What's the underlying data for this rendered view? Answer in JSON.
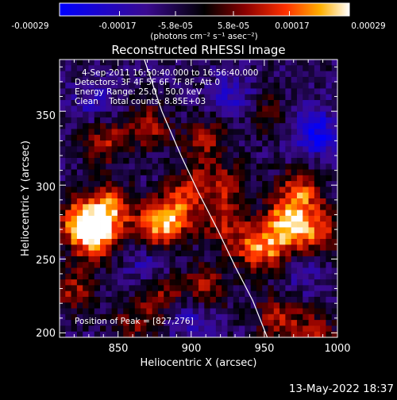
{
  "colorbar": {
    "tick_labels": [
      "-0.00029",
      "-0.00017",
      "-5.8e-05",
      "5.8e-05",
      "0.00017",
      "0.00029"
    ],
    "unit_label": "(photons cm⁻² s⁻¹ asec⁻²)",
    "range": [
      -0.00029,
      0.00029
    ]
  },
  "chart_data": {
    "type": "heatmap",
    "title": "Reconstructed RHESSI Image",
    "xlabel": "Heliocentric X (arcsec)",
    "ylabel": "Heliocentric Y (arcsec)",
    "xlim": [
      810,
      1000
    ],
    "ylim": [
      197,
      385
    ],
    "x_ticks": [
      "850",
      "900",
      "950",
      "1000"
    ],
    "y_ticks": [
      "200",
      "250",
      "300",
      "350"
    ],
    "annotations": [
      "4-Sep-2011 16:50:40.000 to 16:56:40.000",
      "Detectors: 3F 4F 5F 6F 7F 8F, Att 0",
      "Energy Range: 25.0 - 50.0 keV",
      "Clean    Total counts: 8.85E+03"
    ],
    "peak_label": "Position of Peak = [827,276]",
    "limb": [
      [
        868,
        385
      ],
      [
        880,
        350
      ],
      [
        893,
        320
      ],
      [
        905,
        295
      ],
      [
        918,
        270
      ],
      [
        930,
        245
      ],
      [
        942,
        222
      ],
      [
        952,
        197
      ]
    ],
    "hot_spots": [
      {
        "x": 825,
        "y": 275,
        "value": 0.00029
      },
      {
        "x": 835,
        "y": 265,
        "value": 0.00026
      },
      {
        "x": 845,
        "y": 285,
        "value": 0.00024
      },
      {
        "x": 888,
        "y": 280,
        "value": 0.00023
      },
      {
        "x": 875,
        "y": 270,
        "value": 0.00021
      },
      {
        "x": 965,
        "y": 275,
        "value": 0.00026
      },
      {
        "x": 975,
        "y": 295,
        "value": 0.00022
      },
      {
        "x": 985,
        "y": 268,
        "value": 0.00021
      },
      {
        "x": 955,
        "y": 255,
        "value": 0.00018
      },
      {
        "x": 940,
        "y": 260,
        "value": 0.00017
      },
      {
        "x": 920,
        "y": 275,
        "value": 0.00015
      },
      {
        "x": 925,
        "y": 300,
        "value": 0.00014
      },
      {
        "x": 900,
        "y": 300,
        "value": 0.00013
      },
      {
        "x": 840,
        "y": 330,
        "value": 0.00017
      },
      {
        "x": 870,
        "y": 340,
        "value": 0.00016
      },
      {
        "x": 910,
        "y": 330,
        "value": 0.00015
      },
      {
        "x": 950,
        "y": 350,
        "value": 0.0001
      },
      {
        "x": 880,
        "y": 225,
        "value": 0.00015
      },
      {
        "x": 910,
        "y": 230,
        "value": 0.00017
      },
      {
        "x": 960,
        "y": 210,
        "value": 0.00017
      },
      {
        "x": 985,
        "y": 200,
        "value": 0.00014
      },
      {
        "x": 860,
        "y": 205,
        "value": 0.00012
      },
      {
        "x": 820,
        "y": 230,
        "value": 0.00016
      }
    ],
    "cold_spots": [
      {
        "x": 985,
        "y": 335,
        "value": -0.00019
      },
      {
        "x": 930,
        "y": 360,
        "value": -0.00012
      },
      {
        "x": 870,
        "y": 248,
        "value": -0.00011
      },
      {
        "x": 900,
        "y": 210,
        "value": -0.00013
      },
      {
        "x": 835,
        "y": 355,
        "value": -0.0001
      },
      {
        "x": 975,
        "y": 240,
        "value": -8e-05
      }
    ]
  },
  "timestamp": "13-May-2022 18:37"
}
